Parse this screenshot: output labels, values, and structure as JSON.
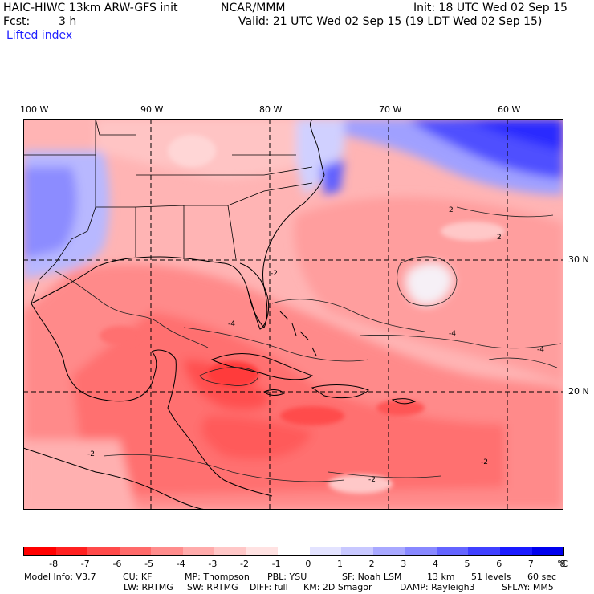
{
  "header": {
    "model_title": "HAIC-HIWC 13km ARW-GFS init",
    "org": "NCAR/MMM",
    "init": "Init: 18 UTC Wed 02 Sep 15",
    "fcst_label": "Fcst:",
    "fcst_value": "3 h",
    "valid": "Valid: 21 UTC Wed 02 Sep 15 (19 LDT Wed 02 Sep 15)",
    "field_name": "Lifted index"
  },
  "axes": {
    "lon_labels": [
      "100 W",
      "90 W",
      "80 W",
      "70 W",
      "60 W"
    ],
    "lat_labels": [
      "30 N",
      "20 N"
    ]
  },
  "map_labels": [
    "2",
    "2",
    "-2",
    "-4",
    "-4",
    "-4",
    "-2",
    "-2",
    "-2"
  ],
  "colorbar": {
    "colors": [
      "#ff0000",
      "#ff2020",
      "#ff4a4a",
      "#ff6a6a",
      "#ff8c8c",
      "#ffabab",
      "#ffc7c7",
      "#ffe2e2",
      "#ffffff",
      "#e3e3ff",
      "#c8c8ff",
      "#a8a8ff",
      "#8888ff",
      "#6464ff",
      "#4040ff",
      "#1a1aff",
      "#0000ee"
    ],
    "labels": [
      "-8",
      "-7",
      "-6",
      "-5",
      "-4",
      "-3",
      "-2",
      "-1",
      "0",
      "1",
      "2",
      "3",
      "4",
      "5",
      "6",
      "7",
      "8"
    ],
    "unit": "°C"
  },
  "footer": {
    "line1": [
      "Model Info: V3.7",
      "CU: KF",
      "MP: Thompson",
      "PBL: YSU",
      "SF: Noah LSM",
      "13 km",
      "51 levels",
      "60 sec"
    ],
    "line2": [
      "LW: RRTMG",
      "SW: RRTMG",
      "DIFF: full",
      "KM: 2D Smagor",
      "DAMP: Rayleigh3",
      "SFLAY: MM5"
    ]
  }
}
